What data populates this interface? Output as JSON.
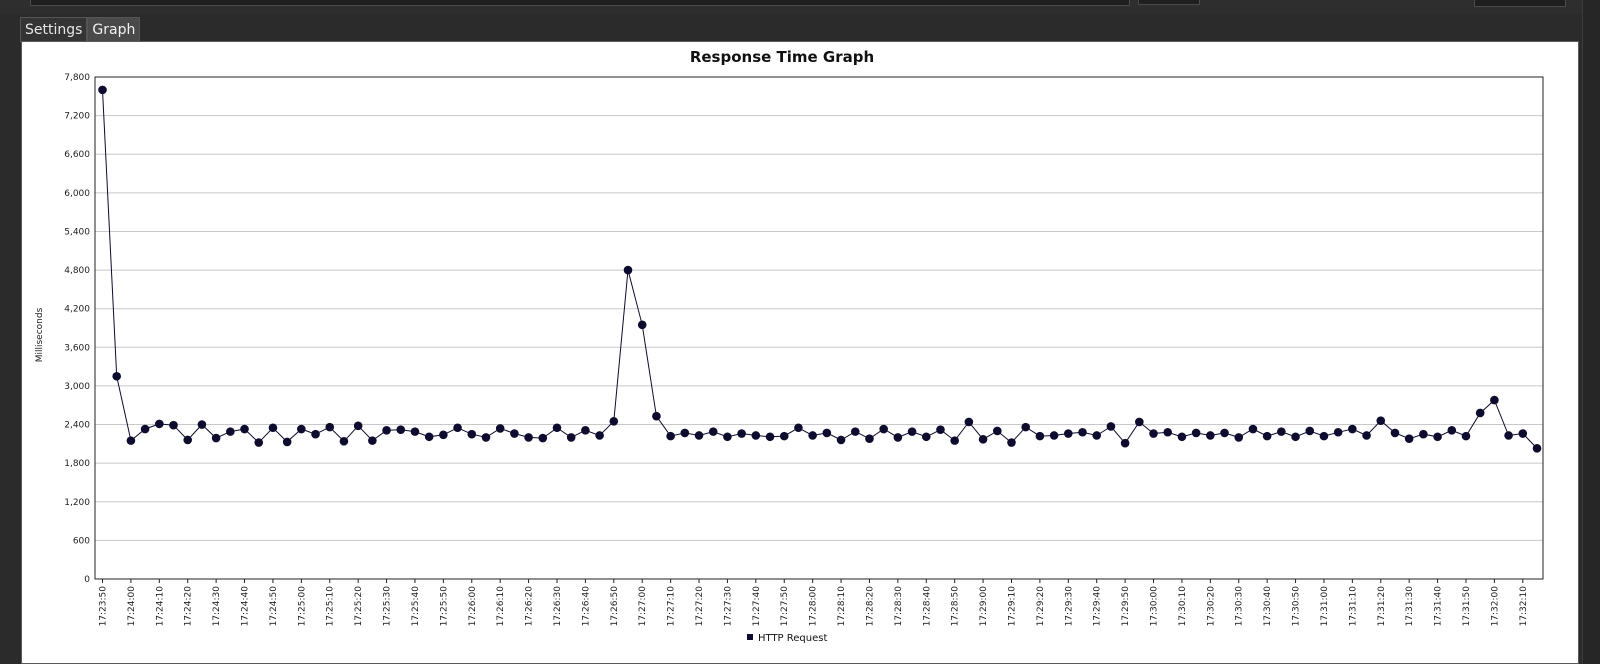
{
  "tabs": [
    {
      "label": "Settings"
    },
    {
      "label": "Graph"
    }
  ],
  "colors": {
    "series": "#0d0b2e",
    "grid": "#c8c8c8",
    "background": "#2b2b2b"
  },
  "chart_data": {
    "type": "line",
    "title": "Response Time Graph",
    "xlabel": "",
    "ylabel": "Milliseconds",
    "ylim": [
      0,
      7800
    ],
    "yticks": [
      "0",
      "600",
      "1,200",
      "1,800",
      "2,400",
      "3,000",
      "3,600",
      "4,200",
      "4,800",
      "5,400",
      "6,000",
      "6,600",
      "7,200",
      "7,800"
    ],
    "grid": true,
    "legend": {
      "position": "bottom-center",
      "entries": [
        "HTTP Request"
      ]
    },
    "x_tick_labels": [
      "17:23:50",
      "17:24:00",
      "17:24:10",
      "17:24:20",
      "17:24:30",
      "17:24:40",
      "17:24:50",
      "17:25:00",
      "17:25:10",
      "17:25:20",
      "17:25:30",
      "17:25:40",
      "17:25:50",
      "17:26:00",
      "17:26:10",
      "17:26:20",
      "17:26:30",
      "17:26:40",
      "17:26:50",
      "17:27:00",
      "17:27:10",
      "17:27:20",
      "17:27:30",
      "17:27:40",
      "17:27:50",
      "17:28:00",
      "17:28:10",
      "17:28:20",
      "17:28:30",
      "17:28:40",
      "17:28:50",
      "17:29:00",
      "17:29:10",
      "17:29:20",
      "17:29:30",
      "17:29:40",
      "17:29:50",
      "17:30:00",
      "17:30:10",
      "17:30:20",
      "17:30:30",
      "17:30:40",
      "17:30:50",
      "17:31:00",
      "17:31:10",
      "17:31:20",
      "17:31:30",
      "17:31:40",
      "17:31:50",
      "17:32:00",
      "17:32:10"
    ],
    "series": [
      {
        "name": "HTTP Request",
        "values": [
          7600,
          3150,
          2150,
          2330,
          2410,
          2390,
          2160,
          2400,
          2190,
          2290,
          2330,
          2120,
          2350,
          2130,
          2330,
          2250,
          2360,
          2140,
          2380,
          2150,
          2310,
          2320,
          2290,
          2210,
          2240,
          2350,
          2250,
          2200,
          2340,
          2260,
          2200,
          2190,
          2350,
          2200,
          2310,
          2230,
          2450,
          4800,
          3950,
          2530,
          2220,
          2270,
          2230,
          2290,
          2210,
          2260,
          2230,
          2210,
          2220,
          2350,
          2230,
          2270,
          2160,
          2290,
          2180,
          2330,
          2200,
          2290,
          2210,
          2320,
          2150,
          2440,
          2170,
          2300,
          2120,
          2360,
          2220,
          2230,
          2260,
          2280,
          2230,
          2370,
          2110,
          2440,
          2260,
          2280,
          2210,
          2270,
          2230,
          2270,
          2200,
          2330,
          2220,
          2290,
          2210,
          2300,
          2220,
          2280,
          2330,
          2230,
          2460,
          2270,
          2180,
          2250,
          2210,
          2310,
          2220,
          2580,
          2780,
          2230,
          2260,
          2030
        ]
      }
    ]
  }
}
